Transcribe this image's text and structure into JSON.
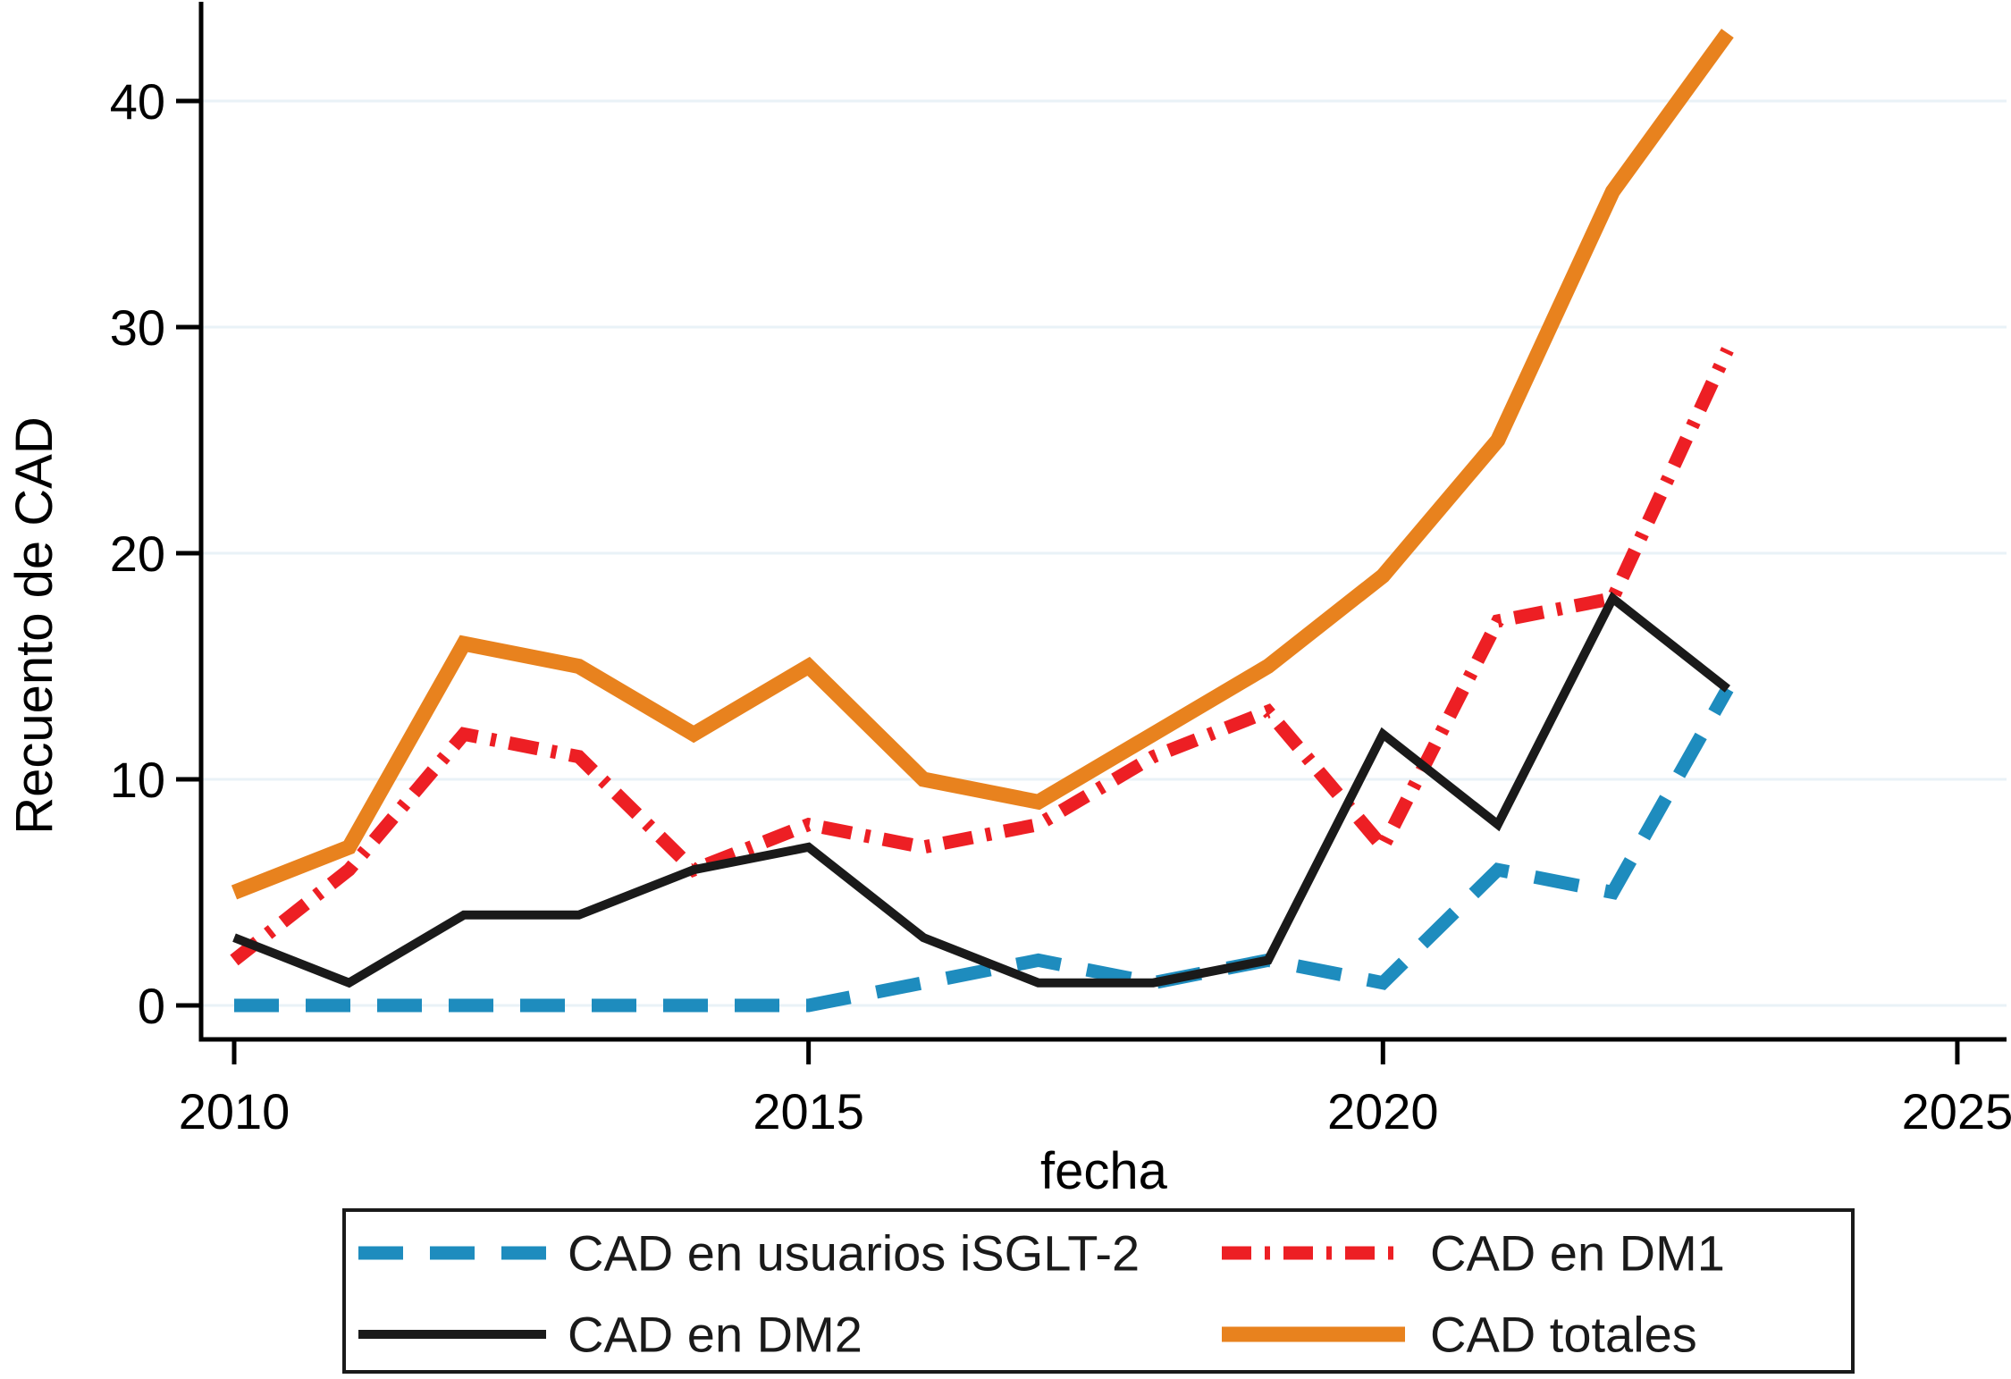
{
  "chart_data": {
    "type": "line",
    "title": "",
    "xlabel": "fecha",
    "ylabel": "Recuento de CAD",
    "x": [
      2010,
      2011,
      2012,
      2013,
      2014,
      2015,
      2016,
      2017,
      2018,
      2019,
      2020,
      2021,
      2022,
      2023
    ],
    "xticks": [
      2010,
      2015,
      2020,
      2025
    ],
    "yticks": [
      0,
      10,
      20,
      30,
      40
    ],
    "xlim": [
      2009.7,
      2025.45
    ],
    "ylim": [
      -1.5,
      44.4
    ],
    "grid": "horizontal",
    "legend_position": "bottom",
    "series": [
      {
        "name": "CAD en usuarios iSGLT-2",
        "color": "#1E8CBE",
        "style": "dashed",
        "dash": "50 30",
        "stroke_width": 15,
        "values": [
          0,
          0,
          0,
          0,
          0,
          0,
          1,
          2,
          1,
          2,
          1,
          6,
          5,
          14
        ]
      },
      {
        "name": "CAD en DM1",
        "color": "#ED1F24",
        "style": "dash-dot",
        "dash": "33 15 6 15",
        "stroke_width": 15,
        "values": [
          2,
          6,
          12,
          11,
          6,
          8,
          7,
          8,
          11,
          13,
          7,
          17,
          18,
          29
        ]
      },
      {
        "name": "CAD en DM2",
        "color": "#1A1A1A",
        "style": "solid",
        "dash": "none",
        "stroke_width": 10,
        "values": [
          3,
          1,
          4,
          4,
          6,
          7,
          3,
          1,
          1,
          2,
          12,
          8,
          18,
          14
        ]
      },
      {
        "name": "CAD totales",
        "color": "#E8821E",
        "style": "solid",
        "dash": "none",
        "stroke_width": 17,
        "values": [
          5,
          7,
          16,
          15,
          12,
          15,
          10,
          9,
          12,
          15,
          19,
          25,
          36,
          43
        ]
      }
    ]
  },
  "colors": {
    "background": "#FFFFFF",
    "gridline": "#E9F2F7",
    "axis": "#000000",
    "text": "#000000"
  }
}
